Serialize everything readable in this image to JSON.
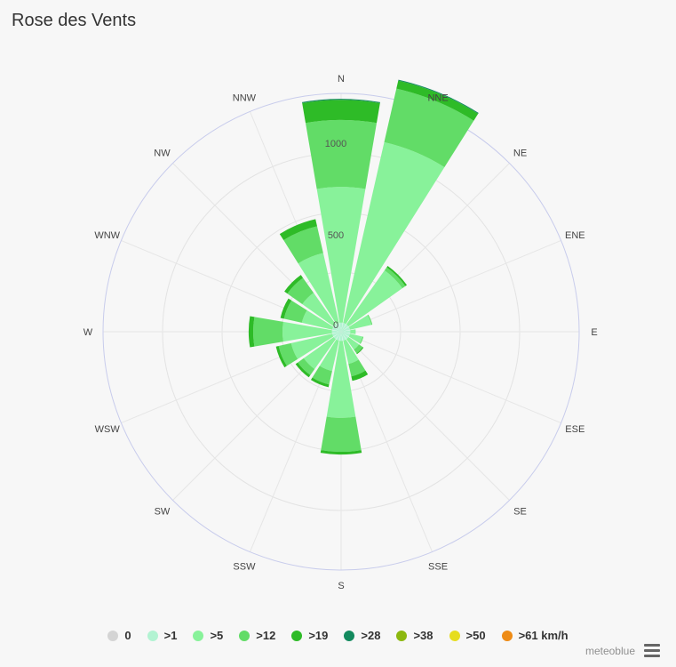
{
  "header": {
    "title": "Rose des Vents"
  },
  "credit": "meteoblue",
  "menu_icon": "hamburger-menu-icon",
  "chart_data": {
    "type": "windrose",
    "directions": [
      "N",
      "NNE",
      "NE",
      "ENE",
      "E",
      "ESE",
      "SE",
      "SSE",
      "S",
      "SSW",
      "SW",
      "WSW",
      "W",
      "WNW",
      "NW",
      "NNW"
    ],
    "radial_ticks": [
      "0",
      "500",
      "1000"
    ],
    "radial_max": 1300,
    "bins": [
      {
        "name": "0",
        "color": "#d4d4d4"
      },
      {
        "name": ">1",
        "color": "#b2f3d2"
      },
      {
        "name": ">5",
        "color": "#88f29a"
      },
      {
        "name": ">12",
        "color": "#62dc67"
      },
      {
        "name": ">19",
        "color": "#2ebb27"
      },
      {
        "name": ">28",
        "color": "#138a5e"
      },
      {
        "name": ">38",
        "color": "#8cb80f"
      },
      {
        "name": ">50",
        "color": "#e6dd1f"
      },
      {
        "name": ">61 km/h",
        "color": "#ee8b15"
      }
    ],
    "series_cumulative": {
      "N": [
        0,
        50,
        790,
        1155,
        1265,
        1270,
        1270,
        1270,
        1270
      ],
      "NNE": [
        0,
        50,
        1060,
        1360,
        1405,
        1410,
        1410,
        1410,
        1410
      ],
      "NE": [
        0,
        50,
        410,
        430,
        440,
        440,
        440,
        440,
        440
      ],
      "ENE": [
        0,
        50,
        170,
        175,
        175,
        175,
        175,
        175,
        175
      ],
      "E": [
        0,
        50,
        80,
        80,
        80,
        80,
        80,
        80,
        80
      ],
      "ESE": [
        0,
        50,
        120,
        125,
        125,
        125,
        125,
        125,
        125
      ],
      "SE": [
        0,
        50,
        120,
        145,
        150,
        150,
        150,
        150,
        150
      ],
      "SSE": [
        0,
        50,
        180,
        250,
        275,
        275,
        275,
        275,
        275
      ],
      "S": [
        0,
        50,
        470,
        655,
        670,
        670,
        670,
        670,
        670
      ],
      "SSW": [
        0,
        50,
        220,
        295,
        310,
        310,
        310,
        310,
        310
      ],
      "SW": [
        0,
        50,
        250,
        290,
        305,
        305,
        305,
        305,
        305
      ],
      "WSW": [
        0,
        50,
        280,
        350,
        365,
        365,
        365,
        365,
        365
      ],
      "W": [
        0,
        50,
        320,
        480,
        505,
        505,
        505,
        505,
        505
      ],
      "WNW": [
        0,
        50,
        220,
        320,
        340,
        340,
        340,
        340,
        340
      ],
      "NW": [
        0,
        50,
        260,
        360,
        380,
        380,
        380,
        380,
        380
      ],
      "NNW": [
        0,
        50,
        440,
        590,
        630,
        630,
        630,
        630,
        630
      ]
    },
    "grid": true,
    "legend_position": "bottom"
  }
}
